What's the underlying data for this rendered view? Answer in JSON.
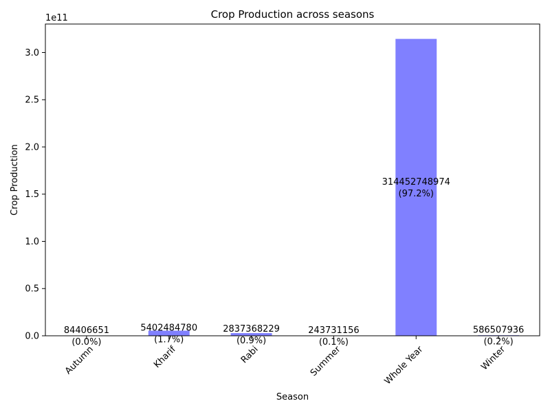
{
  "chart_data": {
    "type": "bar",
    "title": "Crop Production across seasons",
    "xlabel": "Season",
    "ylabel": "Crop Production",
    "offset_label": "1e11",
    "categories": [
      "Autumn",
      "Kharif",
      "Rabi",
      "Summer",
      "Whole Year",
      "Winter"
    ],
    "values": [
      84406651,
      5402484780,
      2837368229,
      243731156,
      314452748974,
      586507936
    ],
    "value_labels": [
      "84406651",
      "5402484780",
      "2837368229",
      "243731156",
      "314452748974",
      "586507936"
    ],
    "percent_labels": [
      "(0.0%)",
      "(1.7%)",
      "(0.9%)",
      "(0.1%)",
      "(97.2%)",
      "(0.2%)"
    ],
    "yticks": [
      0,
      50000000000,
      100000000000,
      150000000000,
      200000000000,
      250000000000,
      300000000000
    ],
    "ytick_labels": [
      "0.0",
      "0.5",
      "1.0",
      "1.5",
      "2.0",
      "2.5",
      "3.0"
    ],
    "ylim": [
      0,
      330175386422.7
    ],
    "grid": false,
    "legend": "none",
    "bar_color": "#8080ff"
  }
}
